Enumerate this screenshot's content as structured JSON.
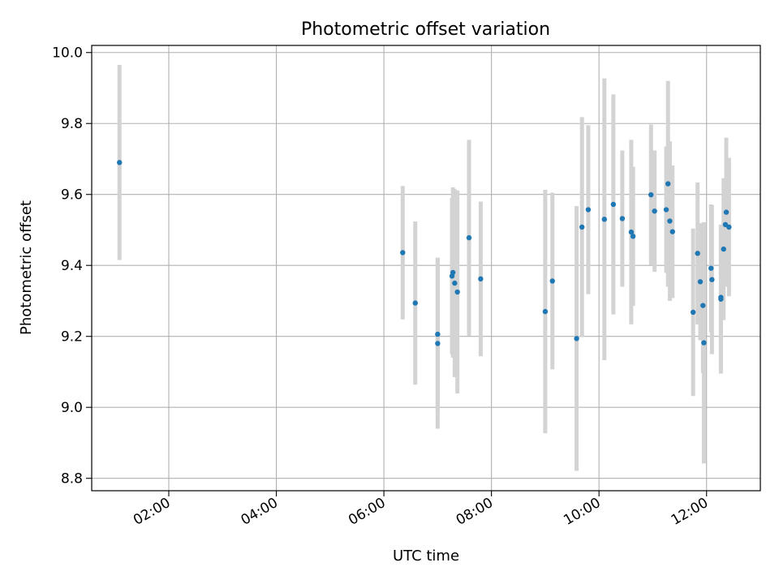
{
  "chart_data": {
    "type": "scatter",
    "title": "Photometric offset variation",
    "xlabel": "UTC time",
    "ylabel": "Photometric offset",
    "xlim": [
      "00:34",
      "13:00"
    ],
    "ylim": [
      8.765,
      10.02
    ],
    "x_ticks": [
      "02:00",
      "04:00",
      "06:00",
      "08:00",
      "10:00",
      "12:00"
    ],
    "y_ticks": [
      8.8,
      9.0,
      9.2,
      9.4,
      9.6,
      9.8,
      10.0
    ],
    "grid": true,
    "legend": "none",
    "colors": {
      "point": "#1f77b4",
      "error_bar": "#d3d3d3",
      "grid": "#b0b0b0"
    },
    "points": [
      {
        "time": "01:05",
        "y": 9.69,
        "err": 0.275
      },
      {
        "time": "06:21",
        "y": 9.436,
        "err": 0.188
      },
      {
        "time": "06:35",
        "y": 9.294,
        "err": 0.23
      },
      {
        "time": "07:00",
        "y": 9.206,
        "err": 0.216
      },
      {
        "time": "07:00",
        "y": 9.18,
        "err": 0.24
      },
      {
        "time": "07:16",
        "y": 9.37,
        "err": 0.22
      },
      {
        "time": "07:17",
        "y": 9.38,
        "err": 0.24
      },
      {
        "time": "07:19",
        "y": 9.35,
        "err": 0.265
      },
      {
        "time": "07:22",
        "y": 9.325,
        "err": 0.286
      },
      {
        "time": "07:35",
        "y": 9.478,
        "err": 0.276
      },
      {
        "time": "07:48",
        "y": 9.362,
        "err": 0.218
      },
      {
        "time": "09:00",
        "y": 9.27,
        "err": 0.343
      },
      {
        "time": "09:08",
        "y": 9.356,
        "err": 0.249
      },
      {
        "time": "09:35",
        "y": 9.194,
        "err": 0.373
      },
      {
        "time": "09:41",
        "y": 9.508,
        "err": 0.31
      },
      {
        "time": "09:48",
        "y": 9.557,
        "err": 0.238
      },
      {
        "time": "10:06",
        "y": 9.53,
        "err": 0.397
      },
      {
        "time": "10:16",
        "y": 9.572,
        "err": 0.31
      },
      {
        "time": "10:26",
        "y": 9.532,
        "err": 0.192
      },
      {
        "time": "10:36",
        "y": 9.494,
        "err": 0.26
      },
      {
        "time": "10:38",
        "y": 9.482,
        "err": 0.196
      },
      {
        "time": "10:58",
        "y": 9.599,
        "err": 0.198
      },
      {
        "time": "11:02",
        "y": 9.553,
        "err": 0.171
      },
      {
        "time": "11:15",
        "y": 9.557,
        "err": 0.178
      },
      {
        "time": "11:17",
        "y": 9.63,
        "err": 0.29
      },
      {
        "time": "11:19",
        "y": 9.525,
        "err": 0.225
      },
      {
        "time": "11:22",
        "y": 9.495,
        "err": 0.187
      },
      {
        "time": "11:45",
        "y": 9.268,
        "err": 0.236
      },
      {
        "time": "11:50",
        "y": 9.434,
        "err": 0.2
      },
      {
        "time": "11:53",
        "y": 9.354,
        "err": 0.165
      },
      {
        "time": "11:56",
        "y": 9.287,
        "err": 0.19
      },
      {
        "time": "11:57",
        "y": 9.182,
        "err": 0.34
      },
      {
        "time": "12:05",
        "y": 9.392,
        "err": 0.18
      },
      {
        "time": "12:06",
        "y": 9.36,
        "err": 0.21
      },
      {
        "time": "12:16",
        "y": 9.31,
        "err": 0.204
      },
      {
        "time": "12:16",
        "y": 9.305,
        "err": 0.21
      },
      {
        "time": "12:19",
        "y": 9.446,
        "err": 0.2
      },
      {
        "time": "12:21",
        "y": 9.515,
        "err": 0.13
      },
      {
        "time": "12:22",
        "y": 9.55,
        "err": 0.21
      },
      {
        "time": "12:25",
        "y": 9.508,
        "err": 0.195
      }
    ]
  }
}
